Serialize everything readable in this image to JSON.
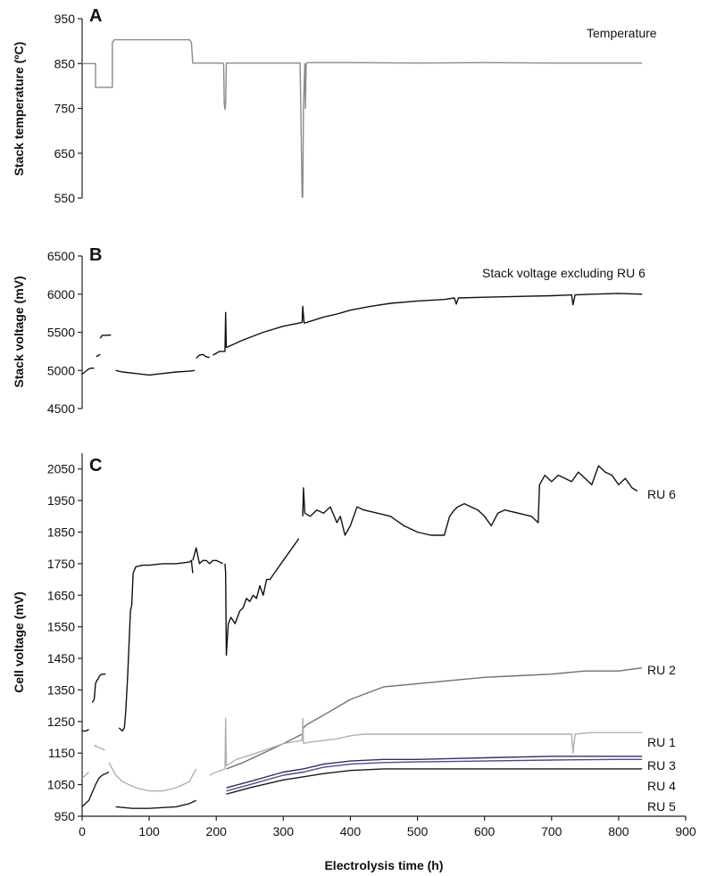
{
  "chart_data": [
    {
      "panel": "A",
      "type": "line",
      "ylabel": "Stack temperature (ºC)",
      "xlabel": "",
      "xlim": [
        0,
        900
      ],
      "ylim": [
        550,
        950
      ],
      "yticks": [
        550,
        650,
        750,
        850,
        950
      ],
      "series": [
        {
          "name": "Temperature",
          "color": "#8a8a8a",
          "x": [
            0,
            20,
            20,
            45,
            45,
            48,
            160,
            163,
            165,
            210,
            211,
            212,
            213,
            214,
            215,
            320,
            322,
            325,
            326,
            328,
            329,
            330,
            332,
            333,
            334,
            336,
            338,
            340,
            400,
            500,
            600,
            700,
            835
          ],
          "y": [
            850,
            850,
            797,
            797,
            897,
            903,
            903,
            897,
            851,
            851,
            848,
            760,
            748,
            760,
            851,
            851,
            851,
            851,
            752,
            552,
            552,
            752,
            850,
            750,
            850,
            852,
            852,
            852,
            852,
            851,
            852,
            851,
            851
          ]
        }
      ]
    },
    {
      "panel": "B",
      "type": "line",
      "ylabel": "Stack voltage (mV)",
      "xlabel": "",
      "xlim": [
        0,
        900
      ],
      "ylim": [
        4500,
        6500
      ],
      "yticks": [
        4500,
        5000,
        5500,
        6000,
        6500
      ],
      "series": [
        {
          "name": "Stack voltage excluding RU 6",
          "color": "#111111",
          "segments": [
            {
              "x": [
                0,
                10,
                14,
                18
              ],
              "y": [
                4950,
                5020,
                5030,
                5030
              ]
            },
            {
              "x": [
                21,
                25,
                27
              ],
              "y": [
                5180,
                5200,
                5210
              ]
            },
            {
              "x": [
                27,
                30,
                35,
                43
              ],
              "y": [
                5420,
                5460,
                5460,
                5465
              ]
            },
            {
              "x": [
                50,
                60,
                80,
                100,
                120,
                140,
                160,
                168
              ],
              "y": [
                5000,
                4980,
                4960,
                4940,
                4960,
                4980,
                4990,
                5000
              ]
            },
            {
              "x": [
                170,
                175,
                180,
                185,
                190
              ],
              "y": [
                5160,
                5200,
                5210,
                5180,
                5170
              ]
            },
            {
              "x": [
                195,
                205,
                213,
                214,
                215
              ],
              "y": [
                5200,
                5250,
                5250,
                5760,
                5300
              ]
            },
            {
              "x": [
                215,
                240,
                270,
                300,
                328,
                329,
                331,
                335
              ],
              "y": [
                5300,
                5400,
                5500,
                5580,
                5630,
                5840,
                5620,
                5630
              ]
            },
            {
              "x": [
                335,
                360,
                380,
                400,
                430,
                460,
                500,
                540,
                555,
                558,
                561,
                600,
                650,
                700,
                730,
                732,
                735,
                760,
                800,
                835
              ],
              "y": [
                5630,
                5700,
                5740,
                5790,
                5840,
                5880,
                5910,
                5930,
                5950,
                5870,
                5950,
                5960,
                5970,
                5980,
                5990,
                5860,
                5990,
                6000,
                6010,
                6000
              ]
            }
          ]
        }
      ]
    },
    {
      "panel": "C",
      "type": "line",
      "ylabel": "Cell voltage (mV)",
      "xlabel": "Electrolysis time (h)",
      "xlim": [
        0,
        900
      ],
      "ylim": [
        950,
        2100
      ],
      "yticks": [
        950,
        1050,
        1150,
        1250,
        1350,
        1450,
        1550,
        1650,
        1750,
        1850,
        1950,
        2050
      ],
      "xticks": [
        0,
        100,
        200,
        300,
        400,
        500,
        600,
        700,
        800,
        900
      ],
      "series": [
        {
          "name": "RU 6",
          "color": "#111111",
          "segments": [
            {
              "x": [
                0,
                6,
                10
              ],
              "y": [
                1220,
                1220,
                1225
              ]
            },
            {
              "x": [
                15,
                18,
                20,
                22,
                24,
                26
              ],
              "y": [
                1310,
                1320,
                1370,
                1380,
                1385,
                1395
              ]
            },
            {
              "x": [
                26,
                30,
                35
              ],
              "y": [
                1395,
                1400,
                1400
              ]
            },
            {
              "x": [
                55,
                60,
                63,
                65,
                68,
                70,
                72,
                74,
                76,
                80,
                90,
                100,
                120,
                140,
                160,
                163,
                165
              ],
              "y": [
                1230,
                1220,
                1230,
                1280,
                1400,
                1500,
                1600,
                1620,
                1720,
                1740,
                1745,
                1745,
                1750,
                1750,
                1755,
                1760,
                1720
              ]
            },
            {
              "x": [
                165,
                170,
                175,
                180,
                185,
                190,
                195,
                200,
                210
              ],
              "y": [
                1760,
                1800,
                1750,
                1760,
                1760,
                1750,
                1760,
                1760,
                1750
              ]
            },
            {
              "x": [
                213,
                214,
                215,
                218,
                222,
                228,
                235,
                240,
                245,
                250,
                255,
                260,
                265,
                270,
                275,
                280,
                290,
                300,
                310,
                320,
                323
              ],
              "y": [
                1750,
                1720,
                1460,
                1560,
                1580,
                1560,
                1600,
                1610,
                1640,
                1630,
                1650,
                1640,
                1680,
                1650,
                1700,
                1700,
                1730,
                1760,
                1790,
                1820,
                1830
              ]
            },
            {
              "x": [
                329,
                330,
                332,
                340,
                350,
                360,
                370,
                380,
                385,
                392,
                400,
                410,
                420,
                440,
                460,
                480,
                500,
                520,
                540,
                548,
                555,
                560,
                570,
                580,
                590,
                600,
                610,
                620,
                630,
                650,
                670,
                680,
                682,
                690,
                700,
                710,
                720,
                730,
                740,
                750,
                760,
                770,
                780,
                790,
                800,
                810,
                820,
                828
              ],
              "y": [
                1900,
                1990,
                1910,
                1900,
                1920,
                1910,
                1930,
                1880,
                1900,
                1840,
                1870,
                1930,
                1920,
                1910,
                1900,
                1870,
                1850,
                1840,
                1840,
                1900,
                1920,
                1930,
                1940,
                1930,
                1920,
                1900,
                1870,
                1910,
                1920,
                1910,
                1900,
                1880,
                2000,
                2030,
                2010,
                2030,
                2020,
                2010,
                2040,
                2020,
                2000,
                2060,
                2040,
                2030,
                2000,
                2020,
                1990,
                1980
              ]
            }
          ]
        },
        {
          "name": "RU 2",
          "color": "#707070",
          "segments": [
            {
              "x": [
                215,
                240,
                270,
                300,
                328,
                330,
                335,
                360,
                400,
                450,
                500,
                550,
                600,
                650,
                700,
                750,
                800,
                835
              ],
              "y": [
                1100,
                1120,
                1150,
                1180,
                1210,
                1230,
                1240,
                1270,
                1320,
                1360,
                1370,
                1380,
                1390,
                1395,
                1400,
                1410,
                1410,
                1420
              ]
            }
          ]
        },
        {
          "name": "RU 1",
          "color": "#b0b0b0",
          "segments": [
            {
              "x": [
                0,
                5,
                10
              ],
              "y": [
                1070,
                1080,
                1090
              ]
            },
            {
              "x": [
                18,
                20,
                22,
                28,
                34
              ],
              "y": [
                1170,
                1175,
                1170,
                1165,
                1160
              ]
            },
            {
              "x": [
                40,
                50,
                60,
                80,
                100,
                120,
                140,
                160,
                165,
                170
              ],
              "y": [
                1120,
                1080,
                1060,
                1040,
                1030,
                1030,
                1040,
                1060,
                1080,
                1100
              ]
            },
            {
              "x": [
                190,
                200,
                213,
                214,
                215,
                230,
                260,
                300,
                328,
                329,
                330,
                340,
                360,
                380,
                400,
                420,
                450,
                500,
                550,
                600,
                650,
                700,
                730,
                732,
                735,
                760,
                800,
                835
              ],
              "y": [
                1080,
                1090,
                1100,
                1260,
                1110,
                1130,
                1150,
                1180,
                1190,
                1260,
                1180,
                1185,
                1190,
                1195,
                1205,
                1210,
                1210,
                1210,
                1210,
                1210,
                1210,
                1210,
                1210,
                1150,
                1210,
                1215,
                1215,
                1215
              ]
            }
          ]
        },
        {
          "name": "RU 3",
          "color": "#303060",
          "segments": [
            {
              "x": [
                215,
                250,
                300,
                330,
                360,
                400,
                450,
                500,
                600,
                700,
                800,
                835
              ],
              "y": [
                1040,
                1060,
                1090,
                1100,
                1115,
                1125,
                1130,
                1130,
                1135,
                1140,
                1140,
                1140
              ]
            }
          ]
        },
        {
          "name": "RU 4",
          "color": "#4a4a8a",
          "segments": [
            {
              "x": [
                215,
                250,
                300,
                330,
                360,
                400,
                450,
                500,
                600,
                700,
                800,
                835
              ],
              "y": [
                1030,
                1050,
                1080,
                1090,
                1105,
                1115,
                1120,
                1122,
                1125,
                1128,
                1130,
                1130
              ]
            }
          ]
        },
        {
          "name": "RU 5",
          "color": "#1a1a1a",
          "segments": [
            {
              "x": [
                0,
                5,
                10,
                20,
                25,
                30,
                40
              ],
              "y": [
                980,
                990,
                1000,
                1050,
                1070,
                1080,
                1090
              ]
            },
            {
              "x": [
                50,
                75,
                100,
                140,
                160,
                170
              ],
              "y": [
                980,
                975,
                975,
                980,
                990,
                1000
              ]
            },
            {
              "x": [
                215,
                250,
                300,
                330,
                360,
                400,
                450,
                500,
                560,
                600,
                680,
                700,
                800,
                835
              ],
              "y": [
                1020,
                1040,
                1065,
                1075,
                1085,
                1095,
                1100,
                1100,
                1100,
                1100,
                1100,
                1100,
                1100,
                1100
              ]
            }
          ]
        }
      ]
    }
  ]
}
